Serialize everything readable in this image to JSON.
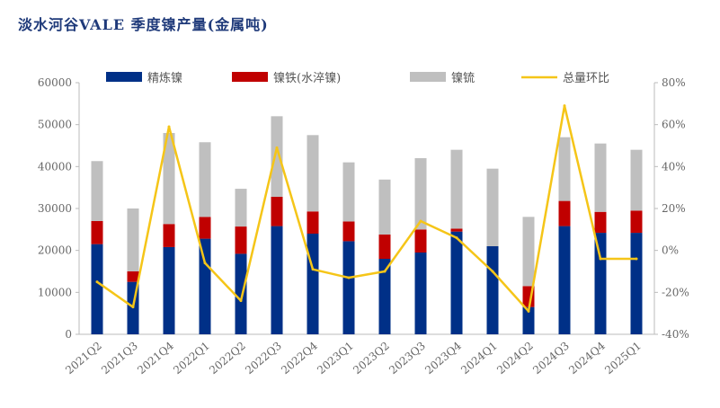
{
  "title": "淡水河谷VALE 季度镍产量(金属吨)",
  "colors": {
    "refined": "#003087",
    "ferronickel": "#c00000",
    "matte": "#bfbfbf",
    "qoq_line": "#f5c518",
    "axis": "#bbbbbb"
  },
  "chart_data": {
    "type": "bar",
    "stacked": true,
    "title": "淡水河谷VALE 季度镍产量(金属吨)",
    "categories": [
      "2021Q2",
      "2021Q3",
      "2021Q4",
      "2022Q1",
      "2022Q2",
      "2022Q3",
      "2022Q4",
      "2023Q1",
      "2023Q2",
      "2023Q3",
      "2023Q4",
      "2024Q1",
      "2024Q2",
      "2024Q3",
      "2024Q4",
      "2025Q1"
    ],
    "series": [
      {
        "name": "精炼镍",
        "axis": "left",
        "values": [
          21500,
          12500,
          20800,
          22800,
          19200,
          25800,
          24000,
          22200,
          18000,
          19500,
          24500,
          21000,
          6500,
          25800,
          24200,
          24200
        ]
      },
      {
        "name": "镍铁(水淬镍)",
        "axis": "left",
        "values": [
          5500,
          2500,
          5500,
          5200,
          6500,
          7000,
          5300,
          4700,
          5800,
          5500,
          700,
          0,
          5000,
          6000,
          5000,
          5300
        ]
      },
      {
        "name": "镍锍",
        "axis": "left",
        "values": [
          14300,
          15000,
          21700,
          17800,
          9000,
          19200,
          18200,
          14100,
          13100,
          17000,
          18800,
          18500,
          16500,
          15200,
          16300,
          14500
        ]
      },
      {
        "name": "总量环比",
        "type": "line",
        "axis": "right",
        "values": [
          -15,
          -27,
          59,
          -6,
          -24,
          49,
          -9,
          -13,
          -10,
          14,
          6,
          -10,
          -29,
          69,
          -4,
          -4
        ]
      }
    ],
    "y_left": {
      "min": 0,
      "max": 60000,
      "ticks": [
        0,
        10000,
        20000,
        30000,
        40000,
        50000,
        60000
      ]
    },
    "y_right": {
      "min": -40,
      "max": 80,
      "ticks": [
        -40,
        -20,
        0,
        20,
        40,
        60,
        80
      ],
      "tick_labels": [
        "-40%",
        "-20%",
        "0%",
        "20%",
        "40%",
        "60%",
        "80%"
      ]
    },
    "legend": {
      "position": "top",
      "entries": [
        "精炼镍",
        "镍铁(水淬镍)",
        "镍锍",
        "总量环比"
      ]
    },
    "grid": false
  }
}
